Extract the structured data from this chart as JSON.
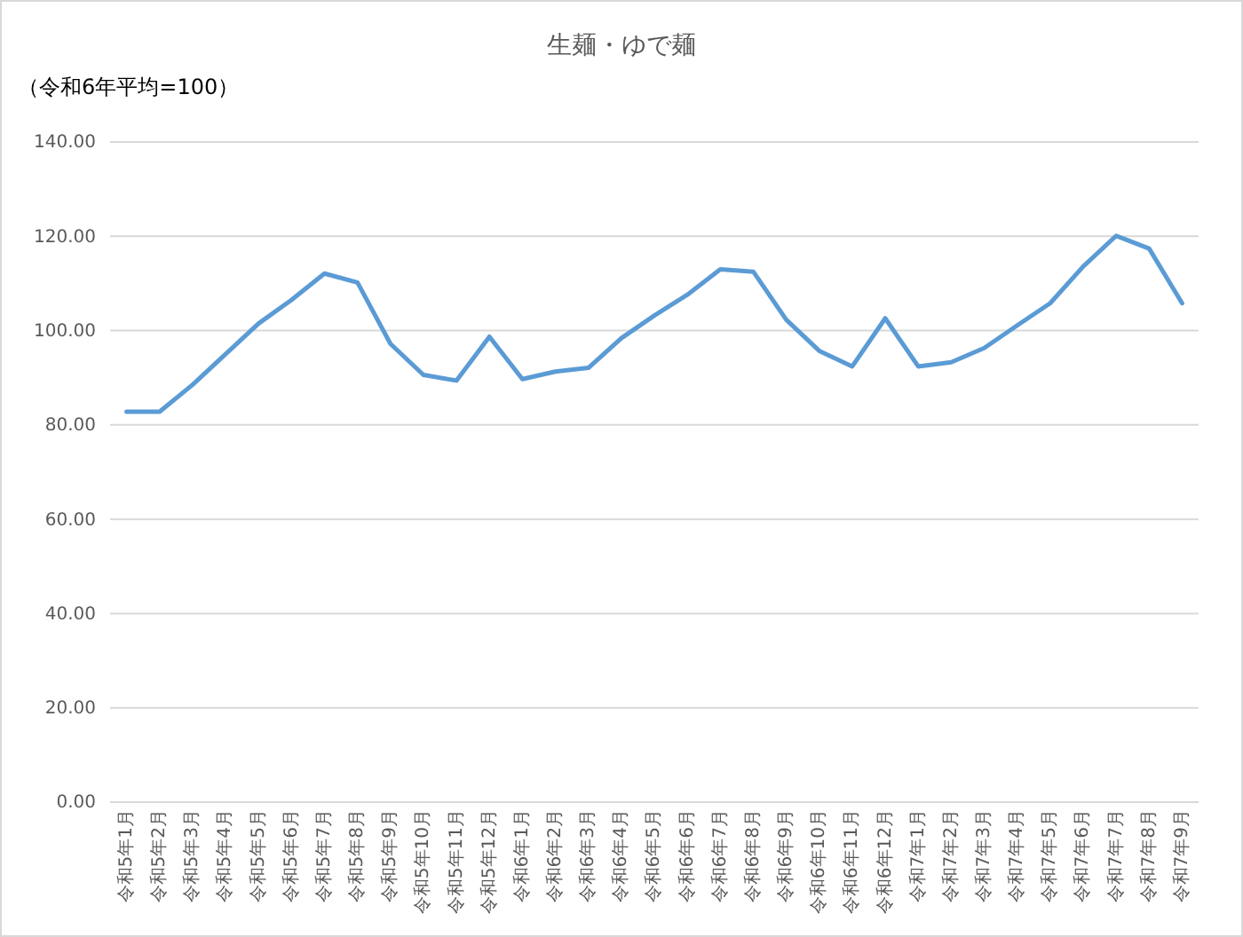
{
  "chart_data": {
    "type": "line",
    "title": "生麺・ゆで麺",
    "subtitle": "（令和6年平均=100）",
    "categories": [
      "令和5年1月",
      "令和5年2月",
      "令和5年3月",
      "令和5年4月",
      "令和5年5月",
      "令和5年6月",
      "令和5年7月",
      "令和5年8月",
      "令和5年9月",
      "令和5年10月",
      "令和5年11月",
      "令和5年12月",
      "令和6年1月",
      "令和6年2月",
      "令和6年3月",
      "令和6年4月",
      "令和6年5月",
      "令和6年6月",
      "令和6年7月",
      "令和6年8月",
      "令和6年9月",
      "令和6年10月",
      "令和6年11月",
      "令和6年12月",
      "令和7年1月",
      "令和7年2月",
      "令和7年3月",
      "令和7年4月",
      "令和7年5月",
      "令和7年6月",
      "令和7年7月",
      "令和7年8月",
      "令和7年9月"
    ],
    "series": [
      {
        "color": "#5b9bd5",
        "values": [
          82.8,
          82.8,
          88.5,
          95,
          101.5,
          106.5,
          112.1,
          110.2,
          97.2,
          90.6,
          89.4,
          98.7,
          89.7,
          91.3,
          92.1,
          98.4,
          103.2,
          107.6,
          113,
          112.5,
          102.3,
          95.7,
          92.4,
          102.6,
          92.4,
          93.3,
          96.3,
          101.1,
          105.8,
          113.6,
          120.1,
          117.4,
          105.8
        ]
      }
    ],
    "ylim": [
      0,
      140
    ],
    "yticks": [
      {
        "value": 0,
        "label": "0.00"
      },
      {
        "value": 20,
        "label": "20.00"
      },
      {
        "value": 40,
        "label": "40.00"
      },
      {
        "value": 60,
        "label": "60.00"
      },
      {
        "value": 80,
        "label": "80.00"
      },
      {
        "value": 100,
        "label": "100.00"
      },
      {
        "value": 120,
        "label": "120.00"
      },
      {
        "value": 140,
        "label": "140.00"
      }
    ],
    "grid": "y",
    "marker": "none",
    "line_style": "solid"
  }
}
